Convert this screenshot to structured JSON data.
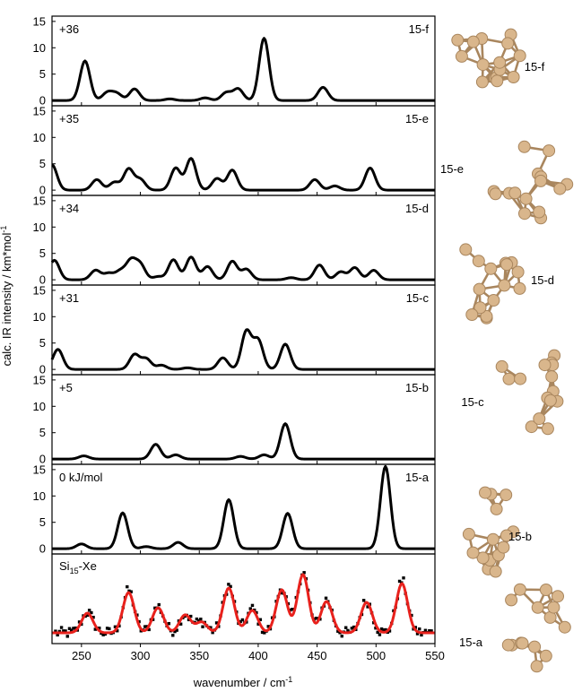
{
  "figure": {
    "xlabel": "wavenumber / cm",
    "xlabel_sup": "-1",
    "ylabel": "calc. IR intensity / km*mol",
    "ylabel_sup": "-1",
    "x_ticks": [
      "250",
      "300",
      "350",
      "400",
      "450",
      "500",
      "550"
    ],
    "y_ticks": [
      "0",
      "5",
      "10",
      "15"
    ]
  },
  "experiment_label": {
    "base": "Si",
    "sub": "15",
    "rest": "-Xe"
  },
  "cluster_labels": [
    "15-f",
    "15-e",
    "15-d",
    "15-c",
    "15-b",
    "15-a"
  ],
  "colors": {
    "calc_line": "#000000",
    "fit_line": "#e8211c",
    "points": "#000000",
    "cluster": "#d9b68c",
    "cluster_dark": "#a9865e"
  },
  "chart_data": [
    {
      "type": "line",
      "panel": "15-f",
      "energy_label": "+36",
      "xlim": [
        225,
        550
      ],
      "ylim": [
        -1,
        16
      ],
      "peaks": [
        [
          253,
          7.5
        ],
        [
          272,
          1.5
        ],
        [
          280,
          1.3
        ],
        [
          295,
          2.2
        ],
        [
          325,
          0.3
        ],
        [
          355,
          0.5
        ],
        [
          373,
          1.5
        ],
        [
          383,
          2.2
        ],
        [
          405,
          11.8
        ],
        [
          455,
          2.5
        ]
      ]
    },
    {
      "type": "line",
      "panel": "15-e",
      "energy_label": "+35",
      "xlim": [
        225,
        550
      ],
      "ylim": [
        -1,
        16
      ],
      "peaks": [
        [
          225,
          4.8
        ],
        [
          263,
          2.0
        ],
        [
          278,
          1.5
        ],
        [
          290,
          4.0
        ],
        [
          300,
          2.0
        ],
        [
          330,
          4.2
        ],
        [
          343,
          6.0
        ],
        [
          365,
          2.2
        ],
        [
          378,
          3.8
        ],
        [
          448,
          2.0
        ],
        [
          465,
          0.8
        ],
        [
          495,
          4.2
        ]
      ]
    },
    {
      "type": "line",
      "panel": "15-d",
      "energy_label": "+34",
      "xlim": [
        225,
        550
      ],
      "ylim": [
        -1,
        16
      ],
      "peaks": [
        [
          227,
          3.7
        ],
        [
          262,
          1.8
        ],
        [
          273,
          1.2
        ],
        [
          283,
          1.6
        ],
        [
          292,
          3.5
        ],
        [
          300,
          2.8
        ],
        [
          315,
          0.6
        ],
        [
          328,
          3.8
        ],
        [
          343,
          4.3
        ],
        [
          357,
          2.5
        ],
        [
          378,
          3.5
        ],
        [
          390,
          2.0
        ],
        [
          428,
          0.4
        ],
        [
          452,
          2.8
        ],
        [
          470,
          1.5
        ],
        [
          482,
          2.3
        ],
        [
          498,
          1.8
        ]
      ]
    },
    {
      "type": "line",
      "panel": "15-c",
      "energy_label": "+31",
      "xlim": [
        225,
        550
      ],
      "ylim": [
        -1,
        16
      ],
      "peaks": [
        [
          230,
          3.8
        ],
        [
          295,
          2.8
        ],
        [
          305,
          2.0
        ],
        [
          318,
          0.8
        ],
        [
          340,
          0.3
        ],
        [
          370,
          2.2
        ],
        [
          390,
          7.2
        ],
        [
          400,
          5.5
        ],
        [
          423,
          4.8
        ]
      ]
    },
    {
      "type": "line",
      "panel": "15-b",
      "energy_label": "+5",
      "xlim": [
        225,
        550
      ],
      "ylim": [
        -1,
        16
      ],
      "peaks": [
        [
          252,
          0.6
        ],
        [
          313,
          2.8
        ],
        [
          330,
          0.8
        ],
        [
          385,
          0.5
        ],
        [
          405,
          0.8
        ],
        [
          423,
          6.7
        ]
      ]
    },
    {
      "type": "line",
      "panel": "15-a",
      "energy_label": "0 kJ/mol",
      "xlim": [
        225,
        550
      ],
      "ylim": [
        -1,
        16
      ],
      "peaks": [
        [
          250,
          0.9
        ],
        [
          285,
          6.8
        ],
        [
          305,
          0.4
        ],
        [
          332,
          1.2
        ],
        [
          375,
          9.3
        ],
        [
          425,
          6.7
        ],
        [
          508,
          15.6
        ]
      ]
    },
    {
      "type": "scatter",
      "panel": "Si15-Xe",
      "xlim": [
        225,
        550
      ],
      "ylim": [
        0,
        1
      ],
      "fit_peaks": [
        [
          255,
          0.22
        ],
        [
          290,
          0.45
        ],
        [
          315,
          0.28
        ],
        [
          338,
          0.2
        ],
        [
          352,
          0.12
        ],
        [
          375,
          0.5
        ],
        [
          395,
          0.25
        ],
        [
          420,
          0.48
        ],
        [
          438,
          0.65
        ],
        [
          458,
          0.35
        ],
        [
          492,
          0.34
        ],
        [
          522,
          0.55
        ]
      ],
      "fit_baseline": 0.12,
      "n_points": 190
    }
  ]
}
